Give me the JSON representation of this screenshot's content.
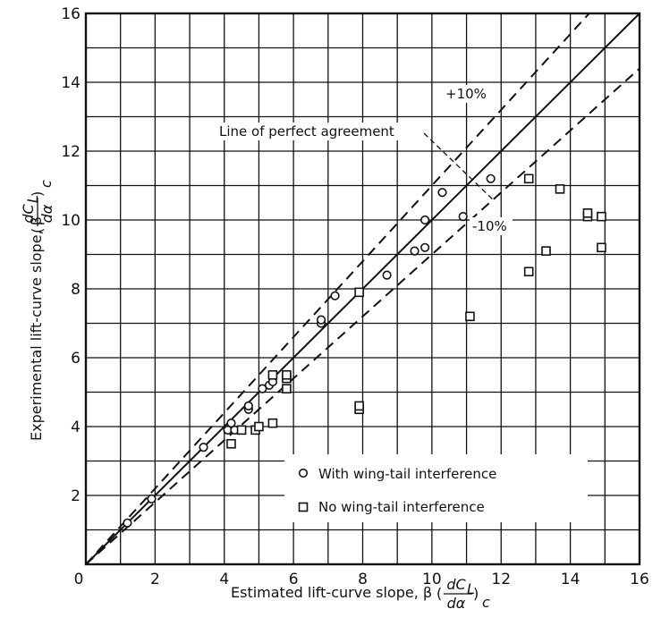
{
  "chart_data": {
    "type": "scatter",
    "title": "",
    "xlabel": "Estimated lift-curve slope, β",
    "xlabel_math": {
      "numerator": "dC",
      "num_sub": "L",
      "denominator": "dα",
      "outer_sub": "c"
    },
    "ylabel": "Experimental lift-curve slope, β",
    "ylabel_math": {
      "numerator": "dC",
      "num_sub": "L",
      "denominator": "dα",
      "outer_sub": "c"
    },
    "xlim": [
      0,
      16
    ],
    "ylim": [
      0,
      16
    ],
    "x_ticks": [
      "0",
      "2",
      "4",
      "6",
      "8",
      "10",
      "12",
      "14",
      "16"
    ],
    "y_ticks": [
      "2",
      "4",
      "6",
      "8",
      "10",
      "12",
      "14",
      "16"
    ],
    "grid": true,
    "grid_step": 1,
    "legend_position": "bottom-right",
    "reference_lines": [
      {
        "kind": "solid",
        "slope": 1.0
      },
      {
        "kind": "dashed",
        "slope": 1.1
      },
      {
        "kind": "dashed",
        "slope": 0.9
      }
    ],
    "annotations": {
      "perfect": "Line of perfect agreement",
      "plus10": "+10%",
      "minus10": "-10%"
    },
    "series": [
      {
        "name": "With wing-tail interference",
        "marker": "circle",
        "points": [
          [
            1.2,
            1.2
          ],
          [
            1.9,
            1.9
          ],
          [
            3.4,
            3.4
          ],
          [
            4.1,
            3.9
          ],
          [
            4.2,
            4.1
          ],
          [
            4.3,
            3.9
          ],
          [
            4.7,
            4.5
          ],
          [
            4.7,
            4.6
          ],
          [
            5.1,
            5.1
          ],
          [
            5.3,
            5.2
          ],
          [
            5.4,
            5.3
          ],
          [
            6.8,
            7.0
          ],
          [
            6.8,
            7.1
          ],
          [
            7.2,
            7.8
          ],
          [
            8.7,
            8.4
          ],
          [
            9.5,
            9.1
          ],
          [
            9.8,
            9.2
          ],
          [
            9.8,
            10.0
          ],
          [
            10.3,
            10.8
          ],
          [
            10.9,
            10.1
          ],
          [
            11.7,
            11.2
          ]
        ]
      },
      {
        "name": "No wing-tail interference",
        "marker": "square",
        "points": [
          [
            4.2,
            3.5
          ],
          [
            4.5,
            3.9
          ],
          [
            4.9,
            3.9
          ],
          [
            5.0,
            4.0
          ],
          [
            5.4,
            4.1
          ],
          [
            5.4,
            5.5
          ],
          [
            5.8,
            5.1
          ],
          [
            5.8,
            5.4
          ],
          [
            5.8,
            5.5
          ],
          [
            7.9,
            4.5
          ],
          [
            7.9,
            4.6
          ],
          [
            7.9,
            7.9
          ],
          [
            11.1,
            7.2
          ],
          [
            12.8,
            8.5
          ],
          [
            12.8,
            11.2
          ],
          [
            13.3,
            9.1
          ],
          [
            13.7,
            10.9
          ],
          [
            14.5,
            10.1
          ],
          [
            14.5,
            10.2
          ],
          [
            14.9,
            9.2
          ],
          [
            14.9,
            10.1
          ]
        ]
      }
    ]
  }
}
